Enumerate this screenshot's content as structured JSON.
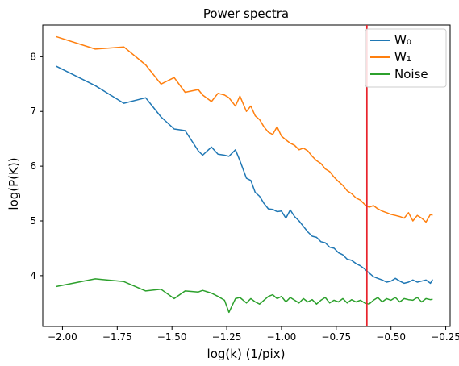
{
  "chart_data": {
    "type": "line",
    "title": "Power spectra",
    "xlabel": "log(k) (1/pix)",
    "ylabel": "log(P(K))",
    "xlim": [
      -2.09,
      -0.23
    ],
    "ylim": [
      3.07,
      8.58
    ],
    "xticks": [
      -2.0,
      -1.75,
      -1.5,
      -1.25,
      -1.0,
      -0.75,
      -0.5,
      -0.25
    ],
    "xtick_labels": [
      "−2.00",
      "−1.75",
      "−1.50",
      "−1.25",
      "−1.00",
      "−0.75",
      "−0.50",
      "−0.25"
    ],
    "yticks": [
      4,
      5,
      6,
      7,
      8
    ],
    "ytick_labels": [
      "4",
      "5",
      "6",
      "7",
      "8"
    ],
    "grid": false,
    "legend_position": "top-right",
    "vline": {
      "x": -0.61,
      "color": "#e8242c"
    },
    "series": [
      {
        "name": "W₀",
        "color": "#1f77b4",
        "x": [
          -2.03,
          -1.85,
          -1.72,
          -1.62,
          -1.55,
          -1.49,
          -1.44,
          -1.38,
          -1.36,
          -1.32,
          -1.29,
          -1.26,
          -1.24,
          -1.21,
          -1.19,
          -1.16,
          -1.14,
          -1.12,
          -1.1,
          -1.08,
          -1.06,
          -1.04,
          -1.02,
          -1.0,
          -0.98,
          -0.96,
          -0.94,
          -0.92,
          -0.9,
          -0.88,
          -0.86,
          -0.84,
          -0.82,
          -0.8,
          -0.78,
          -0.76,
          -0.74,
          -0.72,
          -0.7,
          -0.68,
          -0.66,
          -0.64,
          -0.62,
          -0.6,
          -0.58,
          -0.56,
          -0.54,
          -0.52,
          -0.5,
          -0.48,
          -0.46,
          -0.44,
          -0.42,
          -0.4,
          -0.38,
          -0.36,
          -0.34,
          -0.32,
          -0.31
        ],
        "y": [
          7.83,
          7.47,
          7.15,
          7.25,
          6.9,
          6.68,
          6.65,
          6.28,
          6.2,
          6.35,
          6.22,
          6.2,
          6.18,
          6.3,
          6.1,
          5.78,
          5.74,
          5.52,
          5.45,
          5.32,
          5.22,
          5.21,
          5.17,
          5.18,
          5.05,
          5.2,
          5.08,
          5.0,
          4.9,
          4.8,
          4.72,
          4.7,
          4.62,
          4.6,
          4.52,
          4.5,
          4.42,
          4.38,
          4.3,
          4.28,
          4.22,
          4.18,
          4.12,
          4.05,
          3.98,
          3.95,
          3.92,
          3.88,
          3.9,
          3.95,
          3.9,
          3.86,
          3.88,
          3.92,
          3.88,
          3.9,
          3.92,
          3.86,
          3.93
        ]
      },
      {
        "name": "W₁",
        "color": "#ff7f0e",
        "x": [
          -2.03,
          -1.85,
          -1.72,
          -1.62,
          -1.55,
          -1.49,
          -1.44,
          -1.38,
          -1.36,
          -1.32,
          -1.29,
          -1.26,
          -1.24,
          -1.21,
          -1.19,
          -1.16,
          -1.14,
          -1.12,
          -1.1,
          -1.08,
          -1.06,
          -1.04,
          -1.02,
          -1.0,
          -0.98,
          -0.96,
          -0.94,
          -0.92,
          -0.9,
          -0.88,
          -0.86,
          -0.84,
          -0.82,
          -0.8,
          -0.78,
          -0.76,
          -0.74,
          -0.72,
          -0.7,
          -0.68,
          -0.66,
          -0.64,
          -0.62,
          -0.6,
          -0.58,
          -0.56,
          -0.54,
          -0.52,
          -0.5,
          -0.48,
          -0.46,
          -0.44,
          -0.42,
          -0.4,
          -0.38,
          -0.36,
          -0.34,
          -0.32,
          -0.31
        ],
        "y": [
          8.37,
          8.14,
          8.18,
          7.85,
          7.5,
          7.62,
          7.35,
          7.4,
          7.3,
          7.18,
          7.33,
          7.3,
          7.25,
          7.1,
          7.28,
          7.0,
          7.1,
          6.92,
          6.85,
          6.72,
          6.62,
          6.58,
          6.72,
          6.55,
          6.48,
          6.42,
          6.38,
          6.3,
          6.33,
          6.28,
          6.18,
          6.1,
          6.05,
          5.95,
          5.9,
          5.8,
          5.72,
          5.65,
          5.55,
          5.5,
          5.42,
          5.38,
          5.3,
          5.25,
          5.28,
          5.22,
          5.18,
          5.15,
          5.12,
          5.1,
          5.08,
          5.05,
          5.15,
          5.0,
          5.1,
          5.05,
          4.98,
          5.12,
          5.1
        ]
      },
      {
        "name": "Noise",
        "color": "#2ca02c",
        "x": [
          -2.03,
          -1.85,
          -1.72,
          -1.62,
          -1.55,
          -1.49,
          -1.44,
          -1.38,
          -1.36,
          -1.32,
          -1.29,
          -1.26,
          -1.24,
          -1.21,
          -1.19,
          -1.16,
          -1.14,
          -1.12,
          -1.1,
          -1.08,
          -1.06,
          -1.04,
          -1.02,
          -1.0,
          -0.98,
          -0.96,
          -0.94,
          -0.92,
          -0.9,
          -0.88,
          -0.86,
          -0.84,
          -0.82,
          -0.8,
          -0.78,
          -0.76,
          -0.74,
          -0.72,
          -0.7,
          -0.68,
          -0.66,
          -0.64,
          -0.62,
          -0.6,
          -0.58,
          -0.56,
          -0.54,
          -0.52,
          -0.5,
          -0.48,
          -0.46,
          -0.44,
          -0.42,
          -0.4,
          -0.38,
          -0.36,
          -0.34,
          -0.32,
          -0.31
        ],
        "y": [
          3.8,
          3.94,
          3.89,
          3.72,
          3.75,
          3.58,
          3.72,
          3.7,
          3.73,
          3.68,
          3.62,
          3.55,
          3.33,
          3.58,
          3.6,
          3.5,
          3.58,
          3.52,
          3.48,
          3.55,
          3.62,
          3.65,
          3.58,
          3.62,
          3.52,
          3.6,
          3.55,
          3.5,
          3.58,
          3.52,
          3.56,
          3.48,
          3.55,
          3.6,
          3.5,
          3.55,
          3.52,
          3.58,
          3.5,
          3.56,
          3.52,
          3.55,
          3.5,
          3.48,
          3.55,
          3.6,
          3.52,
          3.58,
          3.55,
          3.6,
          3.52,
          3.58,
          3.56,
          3.55,
          3.6,
          3.52,
          3.58,
          3.56,
          3.57
        ]
      }
    ]
  }
}
